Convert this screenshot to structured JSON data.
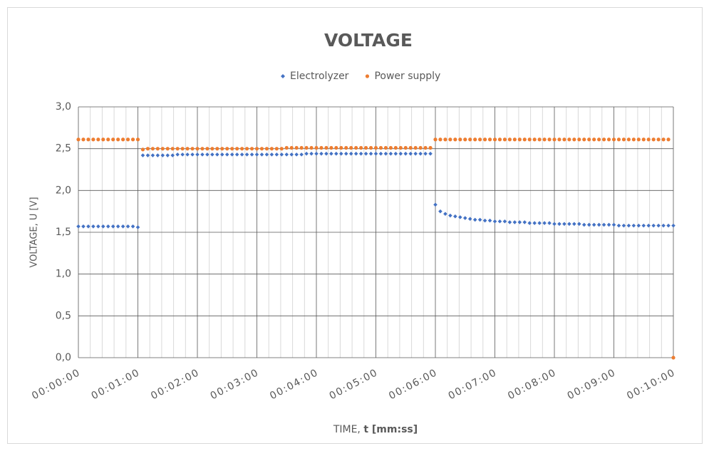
{
  "chart_data": {
    "type": "scatter",
    "title": "VOLTAGE",
    "ylabel": "VOLTAGE, U [V]",
    "xlabel_parts": [
      "TIME, ",
      "t [mm:ss]"
    ],
    "xlim": [
      0,
      600
    ],
    "xticks": [
      {
        "value": 0,
        "label": "00:00:00"
      },
      {
        "value": 60,
        "label": "00:01:00"
      },
      {
        "value": 120,
        "label": "00:02:00"
      },
      {
        "value": 180,
        "label": "00:03:00"
      },
      {
        "value": 240,
        "label": "00:04:00"
      },
      {
        "value": 300,
        "label": "00:05:00"
      },
      {
        "value": 360,
        "label": "00:06:00"
      },
      {
        "value": 420,
        "label": "00:07:00"
      },
      {
        "value": 480,
        "label": "00:08:00"
      },
      {
        "value": 540,
        "label": "00:09:00"
      },
      {
        "value": 600,
        "label": "00:10:00"
      }
    ],
    "ylim": [
      0,
      3
    ],
    "yticks": [
      {
        "value": 0,
        "label": "0,0"
      },
      {
        "value": 0.5,
        "label": "0,5"
      },
      {
        "value": 1,
        "label": "1,0"
      },
      {
        "value": 1.5,
        "label": "1,5"
      },
      {
        "value": 2,
        "label": "2,0"
      },
      {
        "value": 2.5,
        "label": "2,5"
      },
      {
        "value": 3,
        "label": "3,0"
      }
    ],
    "grid": true,
    "legend": "top",
    "x": [
      0,
      5,
      10,
      15,
      20,
      25,
      30,
      35,
      40,
      45,
      50,
      55,
      60,
      65,
      70,
      75,
      80,
      85,
      90,
      95,
      100,
      105,
      110,
      115,
      120,
      125,
      130,
      135,
      140,
      145,
      150,
      155,
      160,
      165,
      170,
      175,
      180,
      185,
      190,
      195,
      200,
      205,
      210,
      215,
      220,
      225,
      230,
      235,
      240,
      245,
      250,
      255,
      260,
      265,
      270,
      275,
      280,
      285,
      290,
      295,
      300,
      305,
      310,
      315,
      320,
      325,
      330,
      335,
      340,
      345,
      350,
      355,
      360,
      365,
      370,
      375,
      380,
      385,
      390,
      395,
      400,
      405,
      410,
      415,
      420,
      425,
      430,
      435,
      440,
      445,
      450,
      455,
      460,
      465,
      470,
      475,
      480,
      485,
      490,
      495,
      500,
      505,
      510,
      515,
      520,
      525,
      530,
      535,
      540,
      545,
      550,
      555,
      560,
      565,
      570,
      575,
      580,
      585,
      590,
      595,
      600
    ],
    "series": [
      {
        "name": "Electrolyzer",
        "color": "#4472c4",
        "marker": "diamond",
        "values": [
          1.57,
          1.57,
          1.57,
          1.57,
          1.57,
          1.57,
          1.57,
          1.57,
          1.57,
          1.57,
          1.57,
          1.57,
          1.56,
          2.42,
          2.42,
          2.42,
          2.42,
          2.42,
          2.42,
          2.42,
          2.43,
          2.43,
          2.43,
          2.43,
          2.43,
          2.43,
          2.43,
          2.43,
          2.43,
          2.43,
          2.43,
          2.43,
          2.43,
          2.43,
          2.43,
          2.43,
          2.43,
          2.43,
          2.43,
          2.43,
          2.43,
          2.43,
          2.43,
          2.43,
          2.43,
          2.43,
          2.44,
          2.44,
          2.44,
          2.44,
          2.44,
          2.44,
          2.44,
          2.44,
          2.44,
          2.44,
          2.44,
          2.44,
          2.44,
          2.44,
          2.44,
          2.44,
          2.44,
          2.44,
          2.44,
          2.44,
          2.44,
          2.44,
          2.44,
          2.44,
          2.44,
          2.44,
          1.83,
          1.75,
          1.72,
          1.7,
          1.69,
          1.68,
          1.67,
          1.66,
          1.65,
          1.65,
          1.64,
          1.64,
          1.63,
          1.63,
          1.63,
          1.62,
          1.62,
          1.62,
          1.62,
          1.61,
          1.61,
          1.61,
          1.61,
          1.61,
          1.6,
          1.6,
          1.6,
          1.6,
          1.6,
          1.6,
          1.59,
          1.59,
          1.59,
          1.59,
          1.59,
          1.59,
          1.59,
          1.58,
          1.58,
          1.58,
          1.58,
          1.58,
          1.58,
          1.58,
          1.58,
          1.58,
          1.58,
          1.58,
          1.58
        ]
      },
      {
        "name": "Power supply",
        "color": "#ed7d31",
        "marker": "circle",
        "values": [
          2.61,
          2.61,
          2.61,
          2.61,
          2.61,
          2.61,
          2.61,
          2.61,
          2.61,
          2.61,
          2.61,
          2.61,
          2.61,
          2.49,
          2.5,
          2.5,
          2.5,
          2.5,
          2.5,
          2.5,
          2.5,
          2.5,
          2.5,
          2.5,
          2.5,
          2.5,
          2.5,
          2.5,
          2.5,
          2.5,
          2.5,
          2.5,
          2.5,
          2.5,
          2.5,
          2.5,
          2.5,
          2.5,
          2.5,
          2.5,
          2.5,
          2.5,
          2.51,
          2.51,
          2.51,
          2.51,
          2.51,
          2.51,
          2.51,
          2.51,
          2.51,
          2.51,
          2.51,
          2.51,
          2.51,
          2.51,
          2.51,
          2.51,
          2.51,
          2.51,
          2.51,
          2.51,
          2.51,
          2.51,
          2.51,
          2.51,
          2.51,
          2.51,
          2.51,
          2.51,
          2.51,
          2.51,
          2.61,
          2.61,
          2.61,
          2.61,
          2.61,
          2.61,
          2.61,
          2.61,
          2.61,
          2.61,
          2.61,
          2.61,
          2.61,
          2.61,
          2.61,
          2.61,
          2.61,
          2.61,
          2.61,
          2.61,
          2.61,
          2.61,
          2.61,
          2.61,
          2.61,
          2.61,
          2.61,
          2.61,
          2.61,
          2.61,
          2.61,
          2.61,
          2.61,
          2.61,
          2.61,
          2.61,
          2.61,
          2.61,
          2.61,
          2.61,
          2.61,
          2.61,
          2.61,
          2.61,
          2.61,
          2.61,
          2.61,
          2.61,
          0
        ]
      }
    ]
  }
}
